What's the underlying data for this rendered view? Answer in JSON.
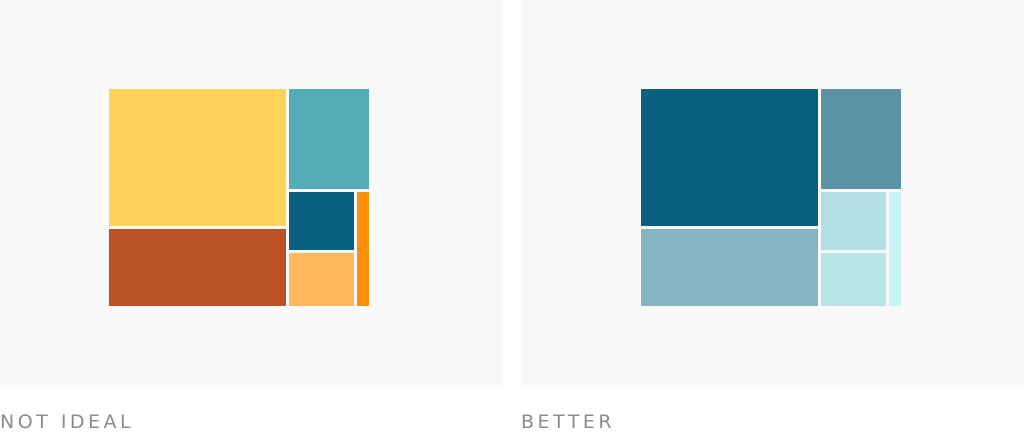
{
  "panels": [
    {
      "caption": "NOT IDEAL",
      "colors": {
        "tile_1": "#FFD25A",
        "tile_2": "#54ACB5",
        "tile_3": "#BA5226",
        "tile_4": "#07617F",
        "tile_5": "#FFB75E",
        "tile_6": "#FF8E0A"
      }
    },
    {
      "caption": "BETTER",
      "colors": {
        "tile_1": "#07617F",
        "tile_2": "#5C94A5",
        "tile_3": "#83B6C1",
        "tile_4": "#B2E0E2",
        "tile_5": "#B8E5E6",
        "tile_6": "#C7F3F4"
      }
    }
  ]
}
